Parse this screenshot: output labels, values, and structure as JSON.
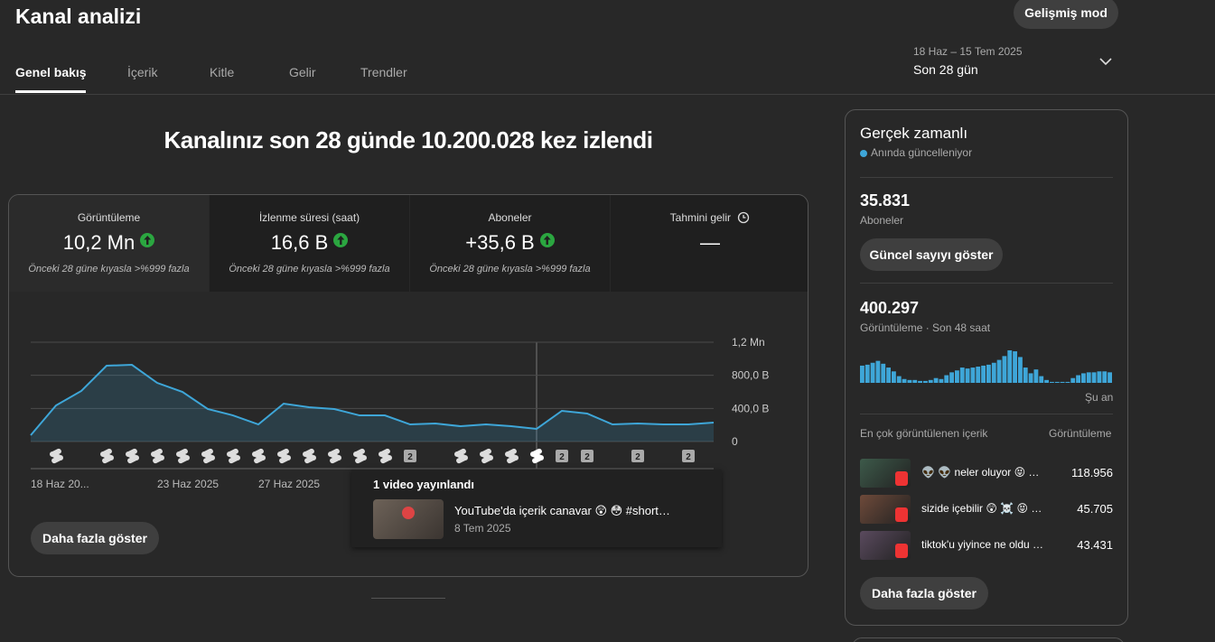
{
  "header": {
    "title": "Kanal analizi",
    "advanced_button": "Gelişmiş mod",
    "tabs": [
      "Genel bakış",
      "İçerik",
      "Kitle",
      "Gelir",
      "Trendler"
    ],
    "date_range": "18 Haz – 15 Tem 2025",
    "period": "Son 28 gün"
  },
  "summary": {
    "headline": "Kanalınız son 28 günde 10.200.028 kez izlendi",
    "metrics": [
      {
        "label": "Görüntüleme",
        "value": "10,2 Mn",
        "comparison": "Önceki 28 güne kıyasla >%999 fazla"
      },
      {
        "label": "İzlenme süresi (saat)",
        "value": "16,6 B",
        "comparison": "Önceki 28 güne kıyasla >%999 fazla"
      },
      {
        "label": "Aboneler",
        "value": "+35,6 B",
        "comparison": "Önceki 28 güne kıyasla >%999 fazla"
      },
      {
        "label": "Tahmini gelir",
        "value": "—"
      }
    ],
    "more_button": "Daha fazla göster",
    "tooltip": {
      "title": "1 video yayınlandı",
      "video_title": "YouTube'da içerik canavar 😲 😳 #short…",
      "video_date": "8 Tem 2025"
    }
  },
  "chart_data": {
    "type": "area",
    "color": "#3ea6d8",
    "categories": [
      "18 Haz 20...",
      null,
      null,
      null,
      null,
      "23 Haz 2025",
      null,
      null,
      null,
      "27 Haz 2025",
      null,
      null,
      null,
      null,
      null,
      null,
      null,
      null,
      null,
      null,
      null,
      null,
      null,
      null,
      null,
      null,
      null,
      null
    ],
    "values": [
      76000,
      436000,
      611000,
      916000,
      927000,
      709000,
      600000,
      393000,
      316000,
      207000,
      458000,
      415000,
      393000,
      316000,
      316000,
      207000,
      218000,
      185000,
      207000,
      185000,
      153000,
      371000,
      338000,
      207000,
      218000,
      207000,
      207000,
      229000
    ],
    "uploads": [
      null,
      1,
      null,
      1,
      1,
      1,
      1,
      1,
      1,
      1,
      1,
      1,
      1,
      1,
      1,
      2,
      null,
      1,
      1,
      1,
      1,
      2,
      2,
      null,
      2,
      null,
      2,
      null
    ],
    "ylim": [
      0,
      1200000
    ],
    "yticks": [
      0,
      {
        "value": 400000,
        "label": "400,0 B"
      },
      {
        "value": 800000,
        "label": "800,0 B"
      },
      {
        "value": 1200000,
        "label": "1,2 Mn"
      }
    ],
    "grid": true
  },
  "realtime": {
    "title": "Gerçek zamanlı",
    "status": "Anında güncelleniyor",
    "subscribers": "35.831",
    "subscribers_label": "Aboneler",
    "subscribers_button": "Güncel sayıyı göster",
    "views": "400.297",
    "views_label": "Görüntüleme · Son 48 saat",
    "hourly_chart": {
      "type": "bar",
      "color": "#3ea6d8",
      "values": [
        9000,
        9500,
        10500,
        11500,
        10000,
        8000,
        6000,
        3500,
        2000,
        1500,
        1500,
        1000,
        1000,
        1500,
        2500,
        2000,
        4000,
        5500,
        6500,
        8000,
        7500,
        8000,
        8500,
        9000,
        9500,
        10500,
        12000,
        14000,
        17000,
        16500,
        13500,
        8000,
        5000,
        7000,
        3500,
        1500,
        500,
        500,
        500,
        500,
        2500,
        4000,
        5000,
        5500,
        5500,
        6000,
        6000,
        5500
      ]
    },
    "now_label": "Şu an",
    "top_content_label": "En çok görüntülenen içerik",
    "top_views_label": "Görüntüleme",
    "top_content": [
      {
        "title": "👽 👽 neler oluyor 😝 …",
        "views": "118.956"
      },
      {
        "title": "sizide içebilir 😲 ☠️ 😝 …",
        "views": "45.705"
      },
      {
        "title": "tiktok'u yiyince ne oldu …",
        "views": "43.431"
      }
    ],
    "more_button": "Daha fazla göster"
  }
}
